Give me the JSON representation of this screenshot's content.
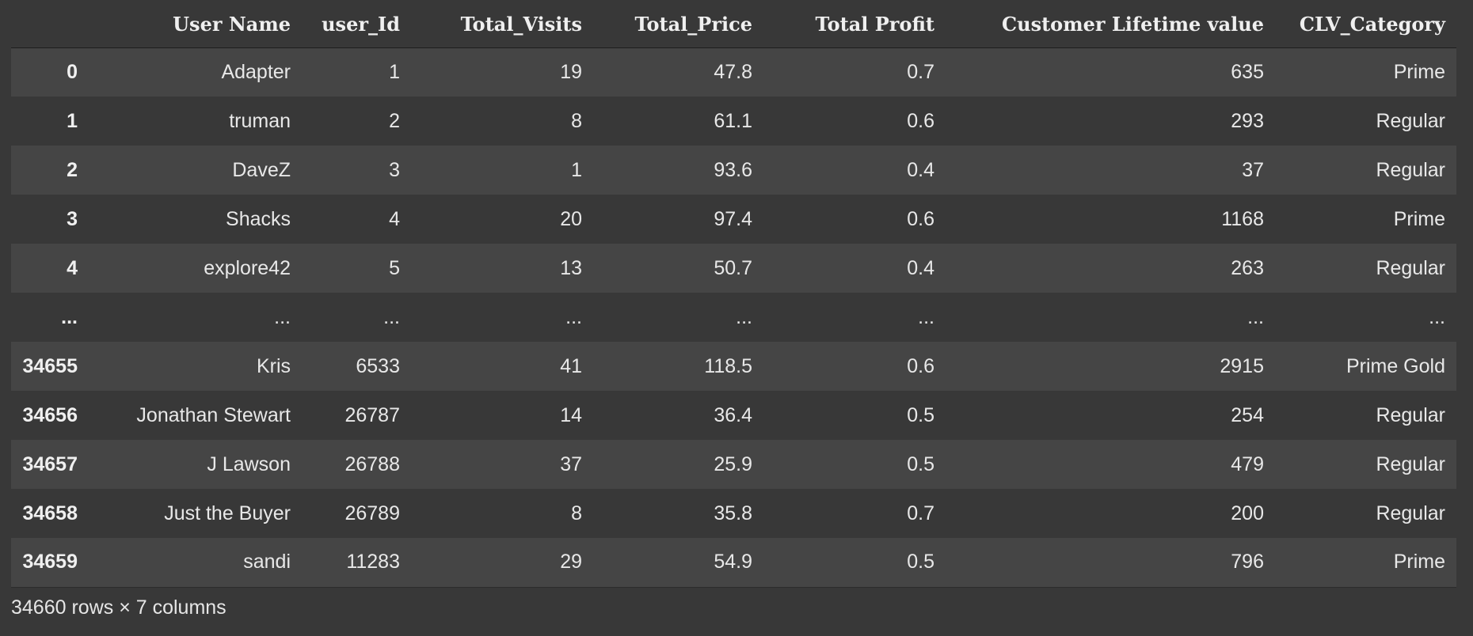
{
  "table": {
    "columns": [
      "",
      "User Name",
      "user_Id",
      "Total_Visits",
      "Total_Price",
      "Total Profit",
      "Customer Lifetime value",
      "CLV_Category"
    ],
    "rows": [
      [
        "0",
        "Adapter",
        "1",
        "19",
        "47.8",
        "0.7",
        "635",
        "Prime"
      ],
      [
        "1",
        "truman",
        "2",
        "8",
        "61.1",
        "0.6",
        "293",
        "Regular"
      ],
      [
        "2",
        "DaveZ",
        "3",
        "1",
        "93.6",
        "0.4",
        "37",
        "Regular"
      ],
      [
        "3",
        "Shacks",
        "4",
        "20",
        "97.4",
        "0.6",
        "1168",
        "Prime"
      ],
      [
        "4",
        "explore42",
        "5",
        "13",
        "50.7",
        "0.4",
        "263",
        "Regular"
      ],
      [
        "...",
        "...",
        "...",
        "...",
        "...",
        "...",
        "...",
        "..."
      ],
      [
        "34655",
        "Kris",
        "6533",
        "41",
        "118.5",
        "0.6",
        "2915",
        "Prime Gold"
      ],
      [
        "34656",
        "Jonathan Stewart",
        "26787",
        "14",
        "36.4",
        "0.5",
        "254",
        "Regular"
      ],
      [
        "34657",
        "J Lawson",
        "26788",
        "37",
        "25.9",
        "0.5",
        "479",
        "Regular"
      ],
      [
        "34658",
        "Just the Buyer",
        "26789",
        "8",
        "35.8",
        "0.7",
        "200",
        "Regular"
      ],
      [
        "34659",
        "sandi",
        "11283",
        "29",
        "54.9",
        "0.5",
        "796",
        "Prime"
      ]
    ]
  },
  "footer": {
    "shape_text": "34660 rows × 7 columns"
  }
}
